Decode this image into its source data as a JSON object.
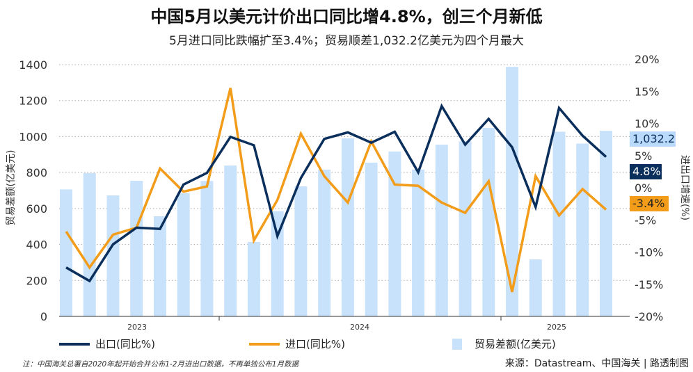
{
  "title": "中国5月以美元计价出口同比增4.8%，创三个月新低",
  "subtitle": "5月进口同比跌幅扩至3.4%；贸易顺差1,032.2亿美元为四个月最大",
  "legend": {
    "exports": "出口(同比%)",
    "imports": "进口(同比%)",
    "balance": "贸易差额(亿美元)"
  },
  "note": "注：中国海关总署自2020年起开始合并公布1-2月进出口数据，不再单独公布1月数据",
  "source": "来源：Datastream、中国海关 | 路透制图",
  "chart_data": {
    "type": "bar+line",
    "title": "中国5月以美元计价出口同比增4.8%，创三个月新低",
    "subtitle": "5月进口同比跌幅扩至3.4%；贸易顺差1,032.2亿美元为四个月最大",
    "ylabel_left": "贸易差额(亿美元)",
    "ylabel_right": "进出口增速(%)",
    "ylim_left": [
      0,
      1400
    ],
    "ylim_right": [
      -20,
      20
    ],
    "left_ticks": [
      "0",
      "200",
      "400",
      "600",
      "800",
      "1000",
      "1200",
      "1400"
    ],
    "right_ticks": [
      "-20%",
      "-15%",
      "-10%",
      "-5%",
      "0%",
      "5%",
      "10%",
      "15%",
      "20%"
    ],
    "year_labels": [
      "2023",
      "2024",
      "2025"
    ],
    "grid": true,
    "legend_position": "bottom",
    "x": [
      "2023-06",
      "2023-07",
      "2023-08",
      "2023-09",
      "2023-10",
      "2023-11",
      "2023-12",
      "2024-01",
      "2024-02",
      "2024-03",
      "2024-04",
      "2024-05",
      "2024-06",
      "2024-07",
      "2024-08",
      "2024-09",
      "2024-10",
      "2024-11",
      "2024-12",
      "2025-01",
      "2025-02",
      "2025-03",
      "2025-04",
      "2025-05"
    ],
    "series": [
      {
        "name": "贸易差额(亿美元)",
        "type": "bar",
        "axis": "left",
        "color": "#c9e2fb",
        "values": [
          706,
          797,
          673,
          754,
          557,
          685,
          753,
          839,
          414,
          585,
          723,
          816,
          990,
          855,
          917,
          817,
          955,
          974,
          1048,
          1388,
          317,
          1027,
          961,
          1032.2
        ]
      },
      {
        "name": "出口(同比%)",
        "type": "line",
        "axis": "right",
        "color": "#0b2f5c",
        "values": [
          -12.4,
          -14.5,
          -8.8,
          -6.2,
          -6.4,
          0.5,
          2.3,
          7.9,
          6.6,
          -7.5,
          1.5,
          7.6,
          8.6,
          7.0,
          8.7,
          2.4,
          12.7,
          6.7,
          10.7,
          6.3,
          -3.0,
          12.4,
          8.1,
          4.8
        ]
      },
      {
        "name": "进口(同比%)",
        "type": "line",
        "axis": "right",
        "color": "#f29c1a",
        "values": [
          -6.8,
          -12.4,
          -7.3,
          -6.2,
          3.0,
          -0.6,
          0.2,
          15.5,
          -8.2,
          -1.9,
          8.4,
          1.8,
          -2.3,
          7.2,
          0.5,
          0.3,
          -2.3,
          -3.9,
          1.0,
          -16.2,
          1.8,
          -4.3,
          -0.2,
          -3.4
        ]
      }
    ],
    "end_labels": {
      "balance": "1,032.2",
      "exports": "4.8%",
      "imports": "-3.4%"
    }
  }
}
